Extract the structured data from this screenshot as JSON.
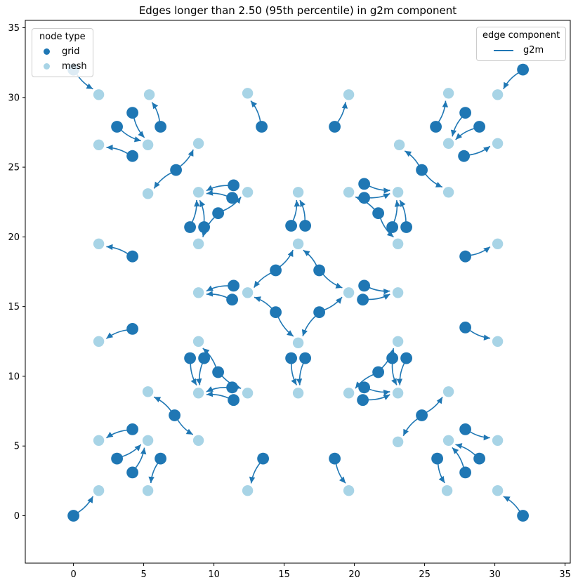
{
  "title": "Edges longer than 2.50 (95th percentile) in g2m component",
  "colors": {
    "grid_node": "#1f77b4",
    "mesh_node": "#a8d4e6",
    "edge": "#1f77b4",
    "spine": "#000000",
    "legend_border": "#cccccc"
  },
  "legends": {
    "node_type": {
      "title": "node type",
      "items": [
        {
          "label": "grid",
          "marker": "dot-icon",
          "color": "#1f77b4"
        },
        {
          "label": "mesh",
          "marker": "dot-icon",
          "color": "#a8d4e6"
        }
      ]
    },
    "edge_component": {
      "title": "edge component",
      "items": [
        {
          "label": "g2m",
          "marker": "line-icon",
          "color": "#1f77b4"
        }
      ]
    }
  },
  "chart_data": {
    "type": "scatter",
    "title": "Edges longer than 2.50 (95th percentile) in g2m component",
    "xlabel": "",
    "ylabel": "",
    "xlim": [
      -3.43,
      35.37
    ],
    "ylim": [
      -3.4,
      35.53
    ],
    "x_ticks": [
      0,
      5,
      10,
      15,
      20,
      25,
      30,
      35
    ],
    "y_ticks": [
      0,
      5,
      10,
      15,
      20,
      25,
      30,
      35
    ],
    "grid": false,
    "legend_positions": {
      "node_type": "upper left",
      "edge_component": "upper right"
    },
    "series": [
      {
        "name": "grid",
        "color": "#1f77b4",
        "marker_radius_px": 8.4,
        "points": [
          [
            0,
            0
          ],
          [
            32,
            0
          ],
          [
            0,
            32
          ],
          [
            32,
            32
          ],
          [
            4.2,
            28.9
          ],
          [
            3.1,
            27.9
          ],
          [
            6.2,
            27.9
          ],
          [
            4.2,
            25.8
          ],
          [
            7.3,
            24.8
          ],
          [
            27.9,
            28.9
          ],
          [
            28.9,
            27.9
          ],
          [
            25.8,
            27.9
          ],
          [
            27.8,
            25.8
          ],
          [
            24.8,
            24.8
          ],
          [
            4.2,
            3.1
          ],
          [
            3.1,
            4.1
          ],
          [
            6.2,
            4.1
          ],
          [
            4.2,
            6.2
          ],
          [
            7.2,
            7.2
          ],
          [
            27.9,
            3.1
          ],
          [
            28.9,
            4.1
          ],
          [
            25.9,
            4.1
          ],
          [
            27.9,
            6.2
          ],
          [
            24.8,
            7.2
          ],
          [
            13.4,
            27.9
          ],
          [
            18.6,
            27.9
          ],
          [
            13.5,
            4.1
          ],
          [
            18.6,
            4.1
          ],
          [
            11.4,
            23.7
          ],
          [
            11.3,
            22.8
          ],
          [
            10.3,
            21.7
          ],
          [
            8.3,
            20.7
          ],
          [
            9.3,
            20.7
          ],
          [
            20.7,
            23.8
          ],
          [
            20.7,
            22.8
          ],
          [
            21.7,
            21.7
          ],
          [
            23.7,
            20.7
          ],
          [
            22.7,
            20.7
          ],
          [
            11.4,
            8.3
          ],
          [
            11.3,
            9.2
          ],
          [
            10.3,
            10.3
          ],
          [
            8.3,
            11.3
          ],
          [
            9.3,
            11.3
          ],
          [
            20.6,
            8.3
          ],
          [
            20.7,
            9.2
          ],
          [
            21.7,
            10.3
          ],
          [
            23.7,
            11.3
          ],
          [
            22.7,
            11.3
          ],
          [
            15.5,
            20.8
          ],
          [
            16.5,
            20.8
          ],
          [
            15.5,
            11.3
          ],
          [
            16.5,
            11.3
          ],
          [
            4.2,
            18.6
          ],
          [
            4.2,
            13.4
          ],
          [
            27.9,
            18.6
          ],
          [
            27.9,
            13.5
          ],
          [
            14.4,
            17.6
          ],
          [
            17.5,
            17.6
          ],
          [
            14.4,
            14.6
          ],
          [
            17.5,
            14.6
          ],
          [
            11.4,
            16.5
          ],
          [
            11.3,
            15.5
          ],
          [
            20.7,
            16.5
          ],
          [
            20.6,
            15.5
          ]
        ]
      },
      {
        "name": "mesh",
        "color": "#a8d4e6",
        "marker_radius_px": 7.7,
        "points": [
          [
            1.8,
            30.2
          ],
          [
            5.4,
            30.2
          ],
          [
            12.4,
            30.3
          ],
          [
            19.6,
            30.2
          ],
          [
            26.7,
            30.3
          ],
          [
            30.2,
            30.2
          ],
          [
            1.8,
            26.6
          ],
          [
            5.3,
            26.6
          ],
          [
            8.9,
            26.7
          ],
          [
            23.2,
            26.6
          ],
          [
            26.7,
            26.7
          ],
          [
            30.2,
            26.7
          ],
          [
            5.3,
            23.1
          ],
          [
            8.9,
            23.2
          ],
          [
            12.4,
            23.2
          ],
          [
            16,
            23.2
          ],
          [
            19.6,
            23.2
          ],
          [
            23.1,
            23.2
          ],
          [
            26.7,
            23.2
          ],
          [
            1.8,
            19.5
          ],
          [
            8.9,
            19.5
          ],
          [
            16,
            19.5
          ],
          [
            23.1,
            19.5
          ],
          [
            30.2,
            19.5
          ],
          [
            8.9,
            16
          ],
          [
            12.4,
            16
          ],
          [
            19.6,
            16
          ],
          [
            23.1,
            16
          ],
          [
            1.8,
            12.5
          ],
          [
            8.9,
            12.5
          ],
          [
            16,
            12.4
          ],
          [
            23.1,
            12.5
          ],
          [
            30.2,
            12.5
          ],
          [
            5.3,
            8.9
          ],
          [
            8.9,
            8.8
          ],
          [
            12.4,
            8.8
          ],
          [
            16,
            8.8
          ],
          [
            19.6,
            8.8
          ],
          [
            23.1,
            8.8
          ],
          [
            26.7,
            8.9
          ],
          [
            1.8,
            5.4
          ],
          [
            5.3,
            5.4
          ],
          [
            8.9,
            5.4
          ],
          [
            23.1,
            5.3
          ],
          [
            26.7,
            5.4
          ],
          [
            30.2,
            5.4
          ],
          [
            1.8,
            1.8
          ],
          [
            5.3,
            1.8
          ],
          [
            12.4,
            1.8
          ],
          [
            19.6,
            1.8
          ],
          [
            26.6,
            1.8
          ],
          [
            30.2,
            1.8
          ]
        ]
      }
    ],
    "edges": {
      "name": "g2m",
      "color": "#1f77b4",
      "style": "curved-arrow",
      "points": [
        [
          0,
          32,
          1.8,
          30.2
        ],
        [
          32,
          32,
          30.2,
          30.2
        ],
        [
          0,
          0,
          1.8,
          1.8
        ],
        [
          32,
          0,
          30.2,
          1.8
        ],
        [
          6.2,
          27.9,
          5.4,
          30.2
        ],
        [
          4.2,
          28.9,
          5.3,
          26.6
        ],
        [
          3.1,
          27.9,
          5.3,
          26.6
        ],
        [
          4.2,
          25.8,
          1.8,
          26.6
        ],
        [
          7.3,
          24.8,
          8.9,
          26.7
        ],
        [
          7.3,
          24.8,
          5.3,
          23.1
        ],
        [
          25.8,
          27.9,
          26.7,
          30.3
        ],
        [
          27.9,
          28.9,
          26.7,
          26.7
        ],
        [
          28.9,
          27.9,
          26.7,
          26.7
        ],
        [
          27.8,
          25.8,
          30.2,
          26.7
        ],
        [
          24.8,
          24.8,
          23.2,
          26.6
        ],
        [
          24.8,
          24.8,
          26.7,
          23.2
        ],
        [
          6.2,
          4.1,
          5.3,
          1.8
        ],
        [
          4.2,
          3.1,
          5.3,
          5.4
        ],
        [
          3.1,
          4.1,
          5.3,
          5.4
        ],
        [
          4.2,
          6.2,
          1.8,
          5.4
        ],
        [
          7.2,
          7.2,
          8.9,
          5.4
        ],
        [
          7.2,
          7.2,
          5.3,
          8.9
        ],
        [
          25.9,
          4.1,
          26.6,
          1.8
        ],
        [
          27.9,
          3.1,
          26.7,
          5.4
        ],
        [
          28.9,
          4.1,
          26.7,
          5.4
        ],
        [
          27.9,
          6.2,
          30.2,
          5.4
        ],
        [
          24.8,
          7.2,
          26.7,
          8.9
        ],
        [
          24.8,
          7.2,
          23.1,
          5.3
        ],
        [
          13.4,
          27.9,
          12.4,
          30.3
        ],
        [
          18.6,
          27.9,
          19.6,
          30.2
        ],
        [
          13.5,
          4.1,
          12.4,
          1.8
        ],
        [
          18.6,
          4.1,
          19.6,
          1.8
        ],
        [
          11.4,
          23.7,
          8.9,
          23.2
        ],
        [
          11.3,
          22.8,
          8.9,
          23.2
        ],
        [
          8.3,
          20.7,
          8.9,
          23.2
        ],
        [
          9.3,
          20.7,
          8.9,
          23.2
        ],
        [
          10.3,
          21.7,
          12.4,
          23.2
        ],
        [
          10.3,
          21.7,
          8.9,
          19.5
        ],
        [
          20.7,
          23.8,
          23.1,
          23.2
        ],
        [
          20.7,
          22.8,
          23.1,
          23.2
        ],
        [
          23.7,
          20.7,
          23.1,
          23.2
        ],
        [
          22.7,
          20.7,
          23.1,
          23.2
        ],
        [
          21.7,
          21.7,
          19.6,
          23.2
        ],
        [
          21.7,
          21.7,
          23.1,
          19.5
        ],
        [
          11.4,
          8.3,
          8.9,
          8.8
        ],
        [
          11.3,
          9.2,
          8.9,
          8.8
        ],
        [
          8.3,
          11.3,
          8.9,
          8.8
        ],
        [
          9.3,
          11.3,
          8.9,
          8.8
        ],
        [
          10.3,
          10.3,
          12.4,
          8.8
        ],
        [
          10.3,
          10.3,
          8.9,
          12.5
        ],
        [
          20.6,
          8.3,
          23.1,
          8.8
        ],
        [
          20.7,
          9.2,
          23.1,
          8.8
        ],
        [
          23.7,
          11.3,
          23.1,
          8.8
        ],
        [
          22.7,
          11.3,
          23.1,
          8.8
        ],
        [
          21.7,
          10.3,
          19.6,
          8.8
        ],
        [
          21.7,
          10.3,
          23.1,
          12.5
        ],
        [
          15.5,
          20.8,
          16,
          23.2
        ],
        [
          16.5,
          20.8,
          16,
          23.2
        ],
        [
          15.5,
          11.3,
          16,
          8.8
        ],
        [
          16.5,
          11.3,
          16,
          8.8
        ],
        [
          4.2,
          18.6,
          1.8,
          19.5
        ],
        [
          27.9,
          18.6,
          30.2,
          19.5
        ],
        [
          4.2,
          13.4,
          1.8,
          12.5
        ],
        [
          27.9,
          13.5,
          30.2,
          12.5
        ],
        [
          14.4,
          17.6,
          16,
          19.5
        ],
        [
          17.5,
          17.6,
          16,
          19.5
        ],
        [
          14.4,
          17.6,
          12.4,
          16
        ],
        [
          14.4,
          14.6,
          12.4,
          16
        ],
        [
          17.5,
          17.6,
          19.6,
          16
        ],
        [
          17.5,
          14.6,
          19.6,
          16
        ],
        [
          14.4,
          14.6,
          16,
          12.4
        ],
        [
          17.5,
          14.6,
          16,
          12.4
        ],
        [
          11.4,
          16.5,
          8.9,
          16
        ],
        [
          11.3,
          15.5,
          8.9,
          16
        ],
        [
          20.7,
          16.5,
          23.1,
          16
        ],
        [
          20.6,
          15.5,
          23.1,
          16
        ]
      ]
    }
  }
}
